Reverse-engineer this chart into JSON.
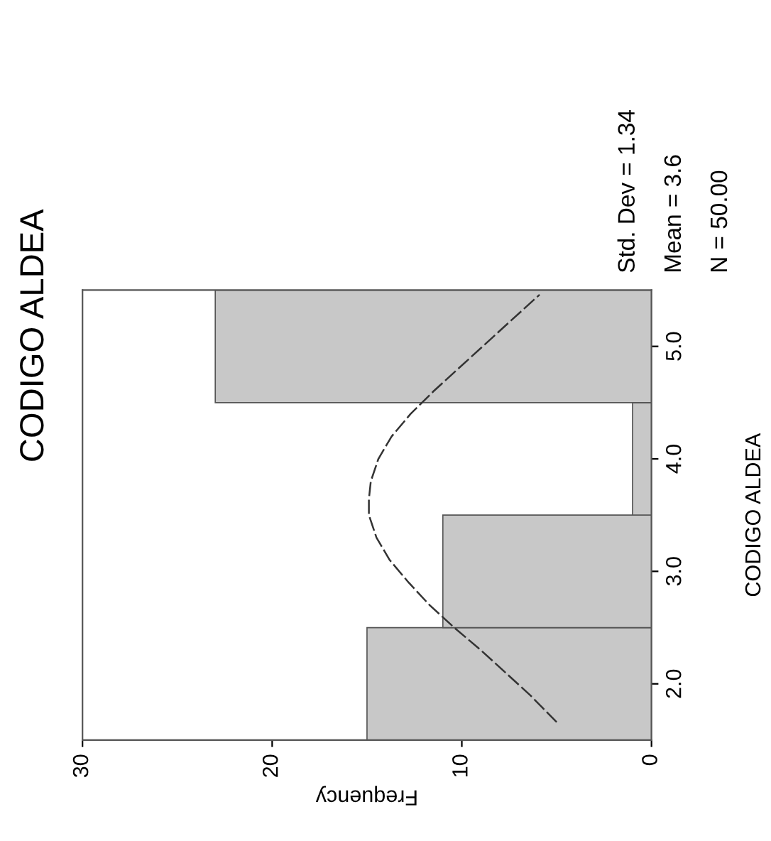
{
  "chart_data": {
    "type": "histogram",
    "orientation": "horizontal",
    "title": "CODIGO ALDEA",
    "xlabel": "Frequency",
    "ylabel": "CODIGO ALDEA",
    "annotations": [
      "Std. Dev = 1.34",
      "Mean = 3.6",
      "N = 50.00"
    ],
    "xlim": [
      30,
      0
    ],
    "xticks": [
      30,
      20,
      10,
      0
    ],
    "ylim": [
      1.5,
      5.5
    ],
    "yticks": [
      {
        "value": 2,
        "label": "2.0"
      },
      {
        "value": 3,
        "label": "3.0"
      },
      {
        "value": 4,
        "label": "4.0"
      },
      {
        "value": 5,
        "label": "5.0"
      }
    ],
    "grid": false,
    "legend": false,
    "series": [
      {
        "color": "#c8c8c8",
        "bins": [
          1.5,
          2.5,
          3.5,
          4.5,
          5.5
        ],
        "values": [
          15,
          11,
          1,
          23
        ]
      },
      {
        "type": "line",
        "color": "#333333",
        "line_style": "dashed",
        "x": [
          1.66,
          1.9,
          2.1,
          2.3,
          2.5,
          2.7,
          2.9,
          3.1,
          3.3,
          3.5,
          3.64,
          3.8,
          4.0,
          4.2,
          4.4,
          4.6,
          4.8,
          5.0,
          5.2,
          5.46
        ],
        "values": [
          5.0,
          6.4,
          7.7,
          9.0,
          10.4,
          11.7,
          12.8,
          13.8,
          14.5,
          14.9,
          14.9,
          14.8,
          14.4,
          13.7,
          12.7,
          11.5,
          10.2,
          8.9,
          7.6,
          5.9
        ]
      }
    ]
  }
}
